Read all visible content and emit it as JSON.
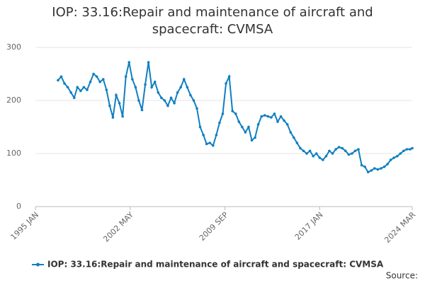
{
  "chart_data": {
    "type": "line",
    "title": "IOP: 33.16:Repair and maintenance of aircraft and spacecraft: CVMSA",
    "source": "Source:",
    "x": [
      "1996 OCT",
      "1997 JAN",
      "1997 APR",
      "1997 JUL",
      "1997 OCT",
      "1998 JAN",
      "1998 APR",
      "1998 JUL",
      "1998 OCT",
      "1999 JAN",
      "1999 APR",
      "1999 JUL",
      "1999 OCT",
      "2000 JAN",
      "2000 APR",
      "2000 JUL",
      "2000 OCT",
      "2001 JAN",
      "2001 APR",
      "2001 JUL",
      "2001 OCT",
      "2002 JAN",
      "2002 APR",
      "2002 JUL",
      "2002 OCT",
      "2003 JAN",
      "2003 APR",
      "2003 JUL",
      "2003 OCT",
      "2004 JAN",
      "2004 APR",
      "2004 JUL",
      "2004 OCT",
      "2005 JAN",
      "2005 APR",
      "2005 JUL",
      "2005 OCT",
      "2006 JAN",
      "2006 APR",
      "2006 JUL",
      "2006 OCT",
      "2007 JAN",
      "2007 APR",
      "2007 JUL",
      "2007 OCT",
      "2008 JAN",
      "2008 APR",
      "2008 JUL",
      "2008 OCT",
      "2009 JAN",
      "2009 APR",
      "2009 JUL",
      "2009 OCT",
      "2010 JAN",
      "2010 APR",
      "2010 JUL",
      "2010 OCT",
      "2011 JAN",
      "2011 APR",
      "2011 JUL",
      "2011 OCT",
      "2012 JAN",
      "2012 APR",
      "2012 JUL",
      "2012 OCT",
      "2013 JAN",
      "2013 APR",
      "2013 JUL",
      "2013 OCT",
      "2014 JAN",
      "2014 APR",
      "2014 JUL",
      "2014 OCT",
      "2015 JAN",
      "2015 APR",
      "2015 JUL",
      "2015 OCT",
      "2016 JAN",
      "2016 APR",
      "2016 JUL",
      "2016 OCT",
      "2017 JAN",
      "2017 APR",
      "2017 JUL",
      "2017 OCT",
      "2018 JAN",
      "2018 APR",
      "2018 JUL",
      "2018 OCT",
      "2019 JAN",
      "2019 APR",
      "2019 JUL",
      "2019 OCT",
      "2020 JAN",
      "2020 APR",
      "2020 JUL",
      "2020 OCT",
      "2021 JAN",
      "2021 APR",
      "2021 JUL",
      "2021 OCT",
      "2022 JAN",
      "2022 APR",
      "2022 JUL",
      "2022 OCT",
      "2023 JAN",
      "2023 APR",
      "2023 JUL",
      "2023 OCT",
      "2024 JAN",
      "2024 MAR"
    ],
    "series": [
      {
        "name": "IOP: 33.16:Repair and maintenance of aircraft and spacecraft: CVMSA",
        "color": "#0f7fc0",
        "values": [
          238,
          245,
          232,
          225,
          215,
          205,
          225,
          218,
          225,
          220,
          235,
          250,
          245,
          235,
          240,
          220,
          190,
          168,
          210,
          195,
          170,
          245,
          272,
          240,
          225,
          200,
          182,
          230,
          272,
          225,
          235,
          215,
          205,
          200,
          190,
          205,
          195,
          215,
          225,
          240,
          225,
          210,
          200,
          185,
          150,
          135,
          118,
          120,
          115,
          135,
          158,
          175,
          232,
          245,
          180,
          175,
          160,
          150,
          140,
          150,
          125,
          130,
          155,
          170,
          172,
          170,
          168,
          175,
          160,
          170,
          162,
          155,
          140,
          130,
          120,
          110,
          105,
          100,
          105,
          95,
          100,
          92,
          88,
          95,
          105,
          100,
          108,
          112,
          110,
          105,
          98,
          100,
          105,
          108,
          78,
          75,
          65,
          68,
          72,
          70,
          72,
          75,
          80,
          88,
          92,
          95,
          100,
          105,
          108,
          108,
          110
        ]
      }
    ],
    "xlim": [
      "1995 JAN",
      "2024 MAR"
    ],
    "xticks": [
      "1995 JAN",
      "2002 MAY",
      "2009 SEP",
      "2017 JAN",
      "2024 MAR"
    ],
    "ylim": [
      0,
      300
    ],
    "yticks": [
      0,
      100,
      200,
      300
    ],
    "grid": true
  }
}
